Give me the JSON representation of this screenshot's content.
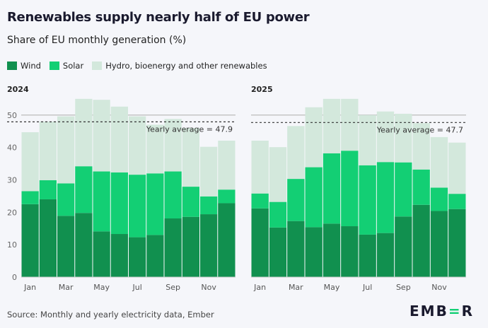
{
  "title": "Renewables supply nearly half of EU power",
  "subtitle": "Share of EU monthly generation (%)",
  "source": "Source: Monthly and yearly electricity data, Ember",
  "logo": "EMBER",
  "colors": {
    "wind": "#11904f",
    "solar": "#13cf74",
    "hydro": "#d3e8dc"
  },
  "chart_data": {
    "type": "bar",
    "stacked": true,
    "title": "Renewables supply nearly half of EU power",
    "ylabel": "Share of EU monthly generation (%)",
    "ylim": [
      0,
      55
    ],
    "yticks": [
      0,
      10,
      20,
      30,
      40,
      50
    ],
    "legend": [
      "Wind",
      "Solar",
      "Hydro, bioenergy and other renewables"
    ],
    "legend_placement": "top-left",
    "categories": [
      "Jan",
      "Feb",
      "Mar",
      "Apr",
      "May",
      "Jun",
      "Jul",
      "Aug",
      "Sep",
      "Oct",
      "Nov",
      "Dec"
    ],
    "xtick_labels": [
      "Jan",
      "Mar",
      "May",
      "Jul",
      "Sep",
      "Nov"
    ],
    "panels": [
      {
        "name": "2024",
        "avg_label": "Yearly average = 47.9",
        "average": 47.9,
        "series": [
          {
            "name": "Wind",
            "values": [
              22.5,
              24.0,
              18.9,
              19.8,
              14.1,
              13.3,
              12.3,
              13.0,
              18.1,
              18.6,
              19.4,
              22.8
            ]
          },
          {
            "name": "Solar",
            "values": [
              4.0,
              5.9,
              10.0,
              14.4,
              18.5,
              19.0,
              19.3,
              19.0,
              14.5,
              9.3,
              5.5,
              4.2
            ]
          },
          {
            "name": "Hydro, bioenergy and other renewables",
            "values": [
              18.2,
              18.1,
              20.7,
              20.8,
              22.1,
              20.3,
              18.0,
              15.0,
              16.2,
              18.1,
              15.3,
              15.1
            ]
          }
        ]
      },
      {
        "name": "2025",
        "avg_label": "Yearly average = 47.7",
        "average": 47.7,
        "series": [
          {
            "name": "Wind",
            "values": [
              21.2,
              15.3,
              17.3,
              15.4,
              16.5,
              15.7,
              13.1,
              13.6,
              18.7,
              22.3,
              20.4,
              21.0
            ]
          },
          {
            "name": "Solar",
            "values": [
              4.6,
              7.9,
              13.0,
              18.5,
              21.7,
              23.3,
              21.4,
              21.9,
              16.7,
              10.9,
              7.2,
              4.7
            ]
          },
          {
            "name": "Hydro, bioenergy and other renewables",
            "values": [
              16.3,
              16.9,
              16.3,
              18.5,
              16.8,
              16.0,
              15.5,
              15.6,
              15.0,
              14.3,
              15.6,
              15.8
            ]
          }
        ]
      }
    ]
  }
}
